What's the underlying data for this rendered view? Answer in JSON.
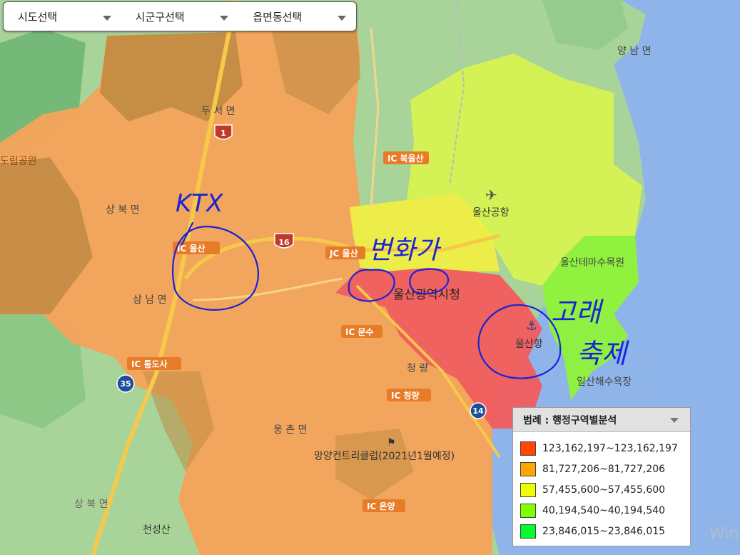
{
  "toolbar": {
    "sido_label": "시도선택",
    "sigungu_label": "시군구선택",
    "eupmyeondong_label": "읍면동선택"
  },
  "legend": {
    "title": "범례 : 행정구역별분석",
    "items": [
      {
        "range": "123,162,197~123,162,197",
        "color": "#ff4500"
      },
      {
        "range": "81,727,206~81,727,206",
        "color": "#ffa500"
      },
      {
        "range": "57,455,600~57,455,600",
        "color": "#eeff00"
      },
      {
        "range": "40,194,540~40,194,540",
        "color": "#80ff00"
      },
      {
        "range": "23,846,015~23,846,015",
        "color": "#00ff2a"
      }
    ]
  },
  "map": {
    "place_labels": {
      "city_hall": "울산광역시청",
      "airport": "울산공항",
      "port": "울산항",
      "theme_arboretum": "울산테마수목원",
      "beach": "일산해수욕장",
      "yangnam": "양 남 면",
      "dusan": "두 서 면",
      "sangbuk": "상 북 면",
      "samnam": "삼 남 면",
      "ungchon": "웅 촌 면",
      "cheongryang": "청 량",
      "provincial_park": "도립공원",
      "country_club": "망양컨트리클럽(2021년1월예정)",
      "cheonseongsan": "천성산",
      "sangbuk_sw": "상 북 면"
    },
    "ic_labels": {
      "bukulsan": "IC 북울산",
      "ulsan_jc": "JC 울산",
      "ulsan_ic": "IC 울산",
      "munsu": "IC 문수",
      "tongdosa": "IC 통도사",
      "cheongryang_ic": "IC 청량",
      "onyang": "IC 온양"
    },
    "shields": {
      "route1": "1",
      "route16": "16",
      "route35": "35",
      "route14": "14"
    },
    "annotations": {
      "ktx": "KTX",
      "downtown": "번화가",
      "whale_festival": "고래 축제"
    }
  },
  "watermark": "Win"
}
